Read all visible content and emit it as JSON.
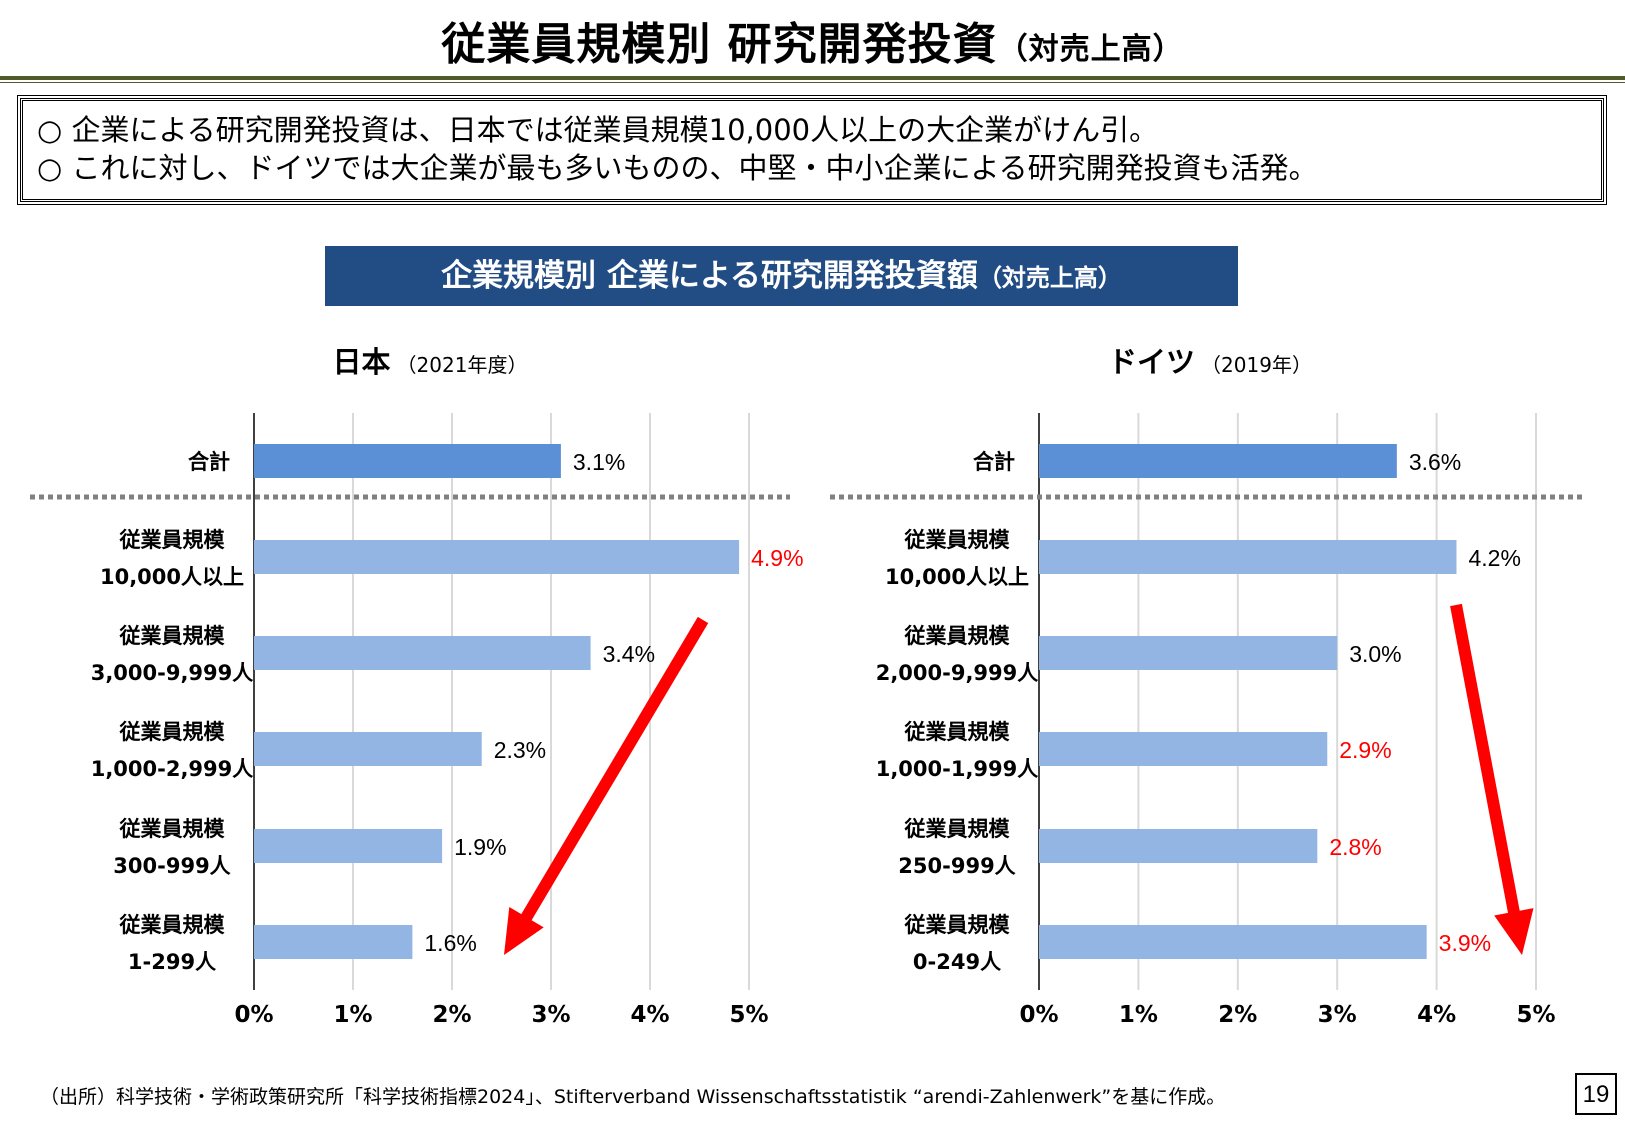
{
  "page": {
    "title": "従業員規模別 研究開発投資",
    "title_suffix": "（対売上高）",
    "summary": [
      "○ 企業による研究開発投資は、日本では従業員規模10,000人以上の大企業がけん引。",
      "○ これに対し、ドイツでは大企業が最も多いものの、中堅・中小企業による研究開発投資も活発。"
    ],
    "chart_header": "企業規模別 企業による研究開発投資額",
    "chart_header_suffix": "（対売上高）",
    "footnote": "（出所）科学技術・学術政策研究所「科学技術指標2024」、Stifterverband Wissenschaftsstatistik “arendi-Zahlenwerk”を基に作成。",
    "page_number": "19"
  },
  "colors": {
    "header_bg": "#214c84",
    "total_bar": "#5b8fd6",
    "bar": "#92b5e4",
    "highlight_label": "#ff0000",
    "arrow": "#ff0000",
    "title_rule": "#4f5b2a"
  },
  "chart_data": [
    {
      "type": "bar",
      "orientation": "horizontal",
      "title": "日本",
      "subtitle": "（2021年度）",
      "categories": [
        "合計",
        "従業員規模\n10,000人以上",
        "従業員規模\n3,000-9,999人",
        "従業員規模\n1,000-2,999人",
        "従業員規模\n300-999人",
        "従業員規模\n1-299人"
      ],
      "values": [
        3.1,
        4.9,
        3.4,
        2.3,
        1.9,
        1.6
      ],
      "value_labels": [
        "3.1%",
        "4.9%",
        "3.4%",
        "2.3%",
        "1.9%",
        "1.6%"
      ],
      "highlighted": [
        false,
        true,
        false,
        false,
        false,
        false
      ],
      "ticks": [
        "0%",
        "1%",
        "2%",
        "3%",
        "4%",
        "5%"
      ],
      "xlim": [
        0,
        5
      ],
      "grid": true,
      "arrow": "down-left"
    },
    {
      "type": "bar",
      "orientation": "horizontal",
      "title": "ドイツ",
      "subtitle": "（2019年）",
      "categories": [
        "合計",
        "従業員規模\n10,000人以上",
        "従業員規模\n2,000-9,999人",
        "従業員規模\n1,000-1,999人",
        "従業員規模\n250-999人",
        "従業員規模\n0-249人"
      ],
      "values": [
        3.6,
        4.2,
        3.0,
        2.9,
        2.8,
        3.9
      ],
      "value_labels": [
        "3.6%",
        "4.2%",
        "3.0%",
        "2.9%",
        "2.8%",
        "3.9%"
      ],
      "highlighted": [
        false,
        false,
        false,
        true,
        true,
        true
      ],
      "ticks": [
        "0%",
        "1%",
        "2%",
        "3%",
        "4%",
        "5%"
      ],
      "xlim": [
        0,
        5
      ],
      "grid": true,
      "arrow": "down-right"
    }
  ]
}
